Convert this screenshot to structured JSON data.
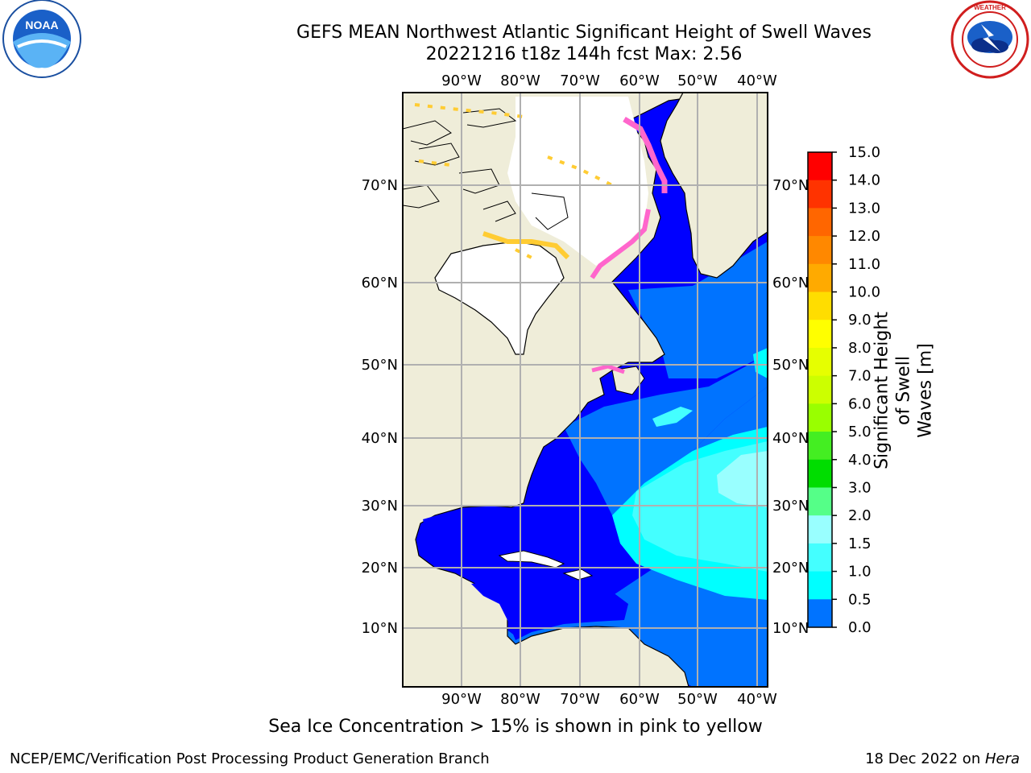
{
  "title": {
    "line1": "GEFS MEAN Northwest Atlantic Significant Height of Swell Waves",
    "line2": "20221216 t18z 144h fcst   Max: 2.56"
  },
  "map": {
    "lon_labels": [
      "90°W",
      "80°W",
      "70°W",
      "60°W",
      "50°W",
      "40°W"
    ],
    "lat_labels": [
      "70°N",
      "60°N",
      "50°N",
      "40°N",
      "30°N",
      "20°N",
      "10°N"
    ],
    "colors": {
      "land": "#efedd9",
      "ice": "#ffffff",
      "c0": "#0000ff",
      "c1": "#0073ff",
      "c2": "#00ffff",
      "c3": "#44ffff",
      "c4": "#99ffff",
      "sea_ice_pink": "#ff66cc",
      "sea_ice_yellow": "#ffcc33"
    }
  },
  "colorbar": {
    "ticks": [
      "15.0",
      "14.0",
      "13.0",
      "12.0",
      "11.0",
      "10.0",
      "9.0",
      "8.0",
      "7.0",
      "6.0",
      "5.0",
      "4.0",
      "3.0",
      "2.0",
      "1.5",
      "1.0",
      "0.5",
      "0.0"
    ],
    "colors": [
      "#ff0000",
      "#ff3300",
      "#ff6600",
      "#ff8800",
      "#ffaa00",
      "#ffdd00",
      "#ffff00",
      "#e6ff00",
      "#ccff00",
      "#99ff00",
      "#44ee22",
      "#00dd00",
      "#55ff88",
      "#99ffff",
      "#44ffff",
      "#00ffff",
      "#0073ff",
      "#0000ff"
    ],
    "label_line1": "Significant Height of Swell",
    "label_line2": "Waves [m]"
  },
  "caption": "Sea Ice Concentration > 15% is shown in pink to yellow",
  "footer": {
    "left": "NCEP/EMC/Verification Post Processing Product Generation Branch",
    "date": "18 Dec 2022 on ",
    "machine": "Hera"
  },
  "logos": {
    "noaa": "NOAA",
    "noaa_ring": "NATIONAL OCEANIC AND ATMOSPHERIC ADMINISTRATION · U.S. DEPARTMENT OF COMMERCE",
    "nws_ring": "NATIONAL WEATHER SERVICE"
  }
}
